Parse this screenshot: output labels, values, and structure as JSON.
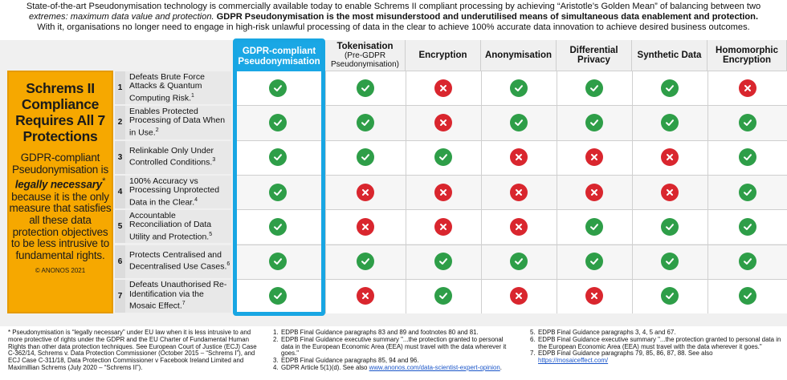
{
  "intro": {
    "line1": "State-of-the-art Pseudonymisation technology is commercially available today to enable Schrems II compliant processing by achieving “Aristotle’s Golden Mean” of balancing between two",
    "line2_italic": "extremes: maximum data value and protection.",
    "line2_bold": "GDPR Pseudonymisation is the most misunderstood and underutilised means of simultaneous data enablement and protection.",
    "line3": "With it, organisations no longer need to engage in high-risk unlawful processing of data in the clear to achieve 100% accurate data innovation to achieve desired business outcomes."
  },
  "sidebar": {
    "headline": "Schrems II Compliance Requires All 7 Protections",
    "body_pre": "GDPR-compliant Pseudonymisation is",
    "body_em": "legally necessary",
    "body_star": "*",
    "body_post": "because it is the only measure that satisfies all these data protection objectives to be less intrusive to fundamental rights.",
    "copyright": "© ANONOS 2021"
  },
  "columns": [
    {
      "label": "GDPR-compliant Pseudonymisation",
      "sub": ""
    },
    {
      "label": "Tokenisation",
      "sub": "(Pre-GDPR Pseudonymisation)"
    },
    {
      "label": "Encryption",
      "sub": ""
    },
    {
      "label": "Anonymisation",
      "sub": ""
    },
    {
      "label": "Differential Privacy",
      "sub": ""
    },
    {
      "label": "Synthetic Data",
      "sub": ""
    },
    {
      "label": "Homomorphic Encryption",
      "sub": ""
    }
  ],
  "rows": [
    {
      "num": "1",
      "text": "Defeats Brute Force Attacks & Quantum Computing Risk.",
      "ref": "1",
      "values": [
        "yes",
        "yes",
        "no",
        "yes",
        "yes",
        "yes",
        "no"
      ]
    },
    {
      "num": "2",
      "text": "Enables Protected Processing of Data When in Use.",
      "ref": "2",
      "values": [
        "yes",
        "yes",
        "no",
        "yes",
        "yes",
        "yes",
        "yes"
      ]
    },
    {
      "num": "3",
      "text": "Relinkable Only Under Controlled Conditions.",
      "ref": "3",
      "values": [
        "yes",
        "yes",
        "yes",
        "no",
        "no",
        "no",
        "yes"
      ]
    },
    {
      "num": "4",
      "text": "100% Accuracy vs Processing Unprotected Data in the Clear.",
      "ref": "4",
      "values": [
        "yes",
        "no",
        "no",
        "no",
        "no",
        "no",
        "yes"
      ]
    },
    {
      "num": "5",
      "text": "Accountable Reconciliation of Data Utility and Protection.",
      "ref": "5",
      "values": [
        "yes",
        "no",
        "no",
        "no",
        "yes",
        "yes",
        "yes"
      ]
    },
    {
      "num": "6",
      "text": "Protects Centralised and Decentralised Use Cases.",
      "ref": "6",
      "values": [
        "yes",
        "yes",
        "yes",
        "yes",
        "yes",
        "yes",
        "yes"
      ]
    },
    {
      "num": "7",
      "text": "Defeats Unauthorised Re-Identification via the Mosaic Effect.",
      "ref": "7",
      "values": [
        "yes",
        "no",
        "yes",
        "no",
        "no",
        "yes",
        "yes"
      ]
    }
  ],
  "footnotes": {
    "star": "* Pseudonymisation is “legally necessary” under EU law when it is less intrusive to and more protective of rights under the GDPR and the EU Charter of Fundamental Human Rights than other data protection techniques. See European Court of Justice (ECJ) Case C-362/14, Schrems v. Data Protection Commissioner (October 2015 – “Schrems I”), and ECJ Case C-311/18, Data Protection Commissioner v Facebook Ireland Limited and Maximillian Schrems (July 2020 – “Schrems II”).",
    "mid": [
      {
        "n": "1.",
        "t": "EDPB Final Guidance paragraphs 83 and 89 and footnotes 80 and 81."
      },
      {
        "n": "2.",
        "t": "EDPB Final Guidance executive summary \"...the protection granted to personal data in the European Economic Area (EEA) must travel with the data wherever it goes.\""
      },
      {
        "n": "3.",
        "t": "EDPB Final Guidance paragraphs 85, 94 and 96."
      },
      {
        "n": "4.",
        "t": "GDPR Article 5(1)(d). See also",
        "link": "www.anonos.com/data-scientist-expert-opinion",
        "after": "."
      }
    ],
    "right": [
      {
        "n": "5.",
        "t": "EDPB Final Guidance paragraphs 3, 4, 5 and 67."
      },
      {
        "n": "6.",
        "t": "EDPB Final Guidance executive summary \"...the protection granted to personal data in the European Economic Area (EEA) must travel with the data wherever it goes.\""
      },
      {
        "n": "7.",
        "t": "EDPB Final Guidance paragraphs 79, 85, 86, 87, 88. See also",
        "link": "https://mosaiceffect.com/",
        "after": ""
      }
    ]
  },
  "colors": {
    "yes": "#2e9e48",
    "no": "#d9262e",
    "accent_blue": "#18a6e3",
    "orange": "#f6a800"
  }
}
